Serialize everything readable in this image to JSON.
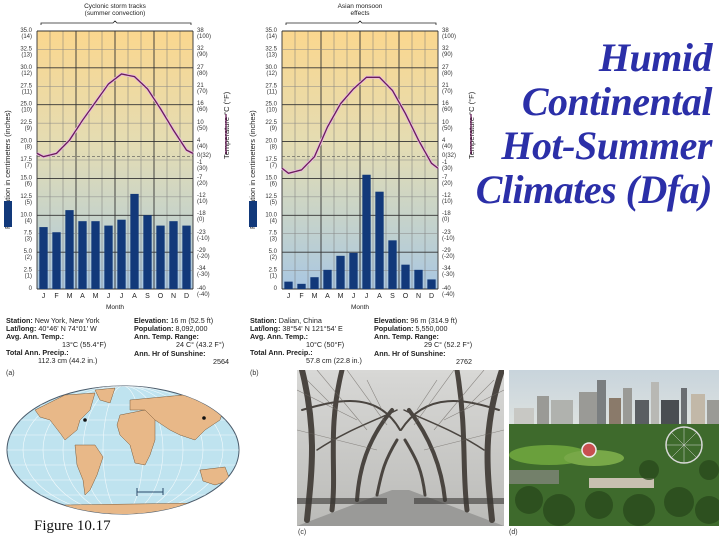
{
  "title": {
    "lines": [
      "Humid",
      "Continental",
      "Hot-Summer",
      "Climates (Dfa)"
    ],
    "color": "#2b2fa8"
  },
  "figure_caption": "Figure  10.17",
  "chart_data": [
    {
      "type": "bar",
      "panel_label": "(a)",
      "title": "Cyclonic storm tracks (summer convection)",
      "title_line1": "Cyclonic storm tracks",
      "title_line2": "(summer convection)",
      "xlabel": "Month",
      "ylabel": "Precipitation in centimeters (inches)",
      "y2label": "Temperature °C (°F)",
      "categories": [
        "J",
        "F",
        "M",
        "A",
        "M",
        "J",
        "J",
        "A",
        "S",
        "O",
        "N",
        "D"
      ],
      "series": [
        {
          "name": "Precipitation (cm)",
          "type": "bar",
          "color": "#12397a",
          "values": [
            8.4,
            7.7,
            10.7,
            9.2,
            9.2,
            8.6,
            9.4,
            12.9,
            10.0,
            8.6,
            9.2,
            8.6
          ]
        },
        {
          "name": "Temperature (°C)",
          "type": "line",
          "color": "#6a1f5a",
          "values": [
            0,
            1,
            5,
            11,
            16.5,
            22,
            25,
            24.2,
            20.5,
            14.5,
            8,
            2
          ]
        }
      ],
      "ylim": [
        0,
        35
      ],
      "y2lim": [
        -40,
        38
      ],
      "yticks": [
        {
          "cm": "35.0",
          "in": "(14)"
        },
        {
          "cm": "32.5",
          "in": "(13)"
        },
        {
          "cm": "30.0",
          "in": "(12)"
        },
        {
          "cm": "27.5",
          "in": "(11)"
        },
        {
          "cm": "25.0",
          "in": "(10)"
        },
        {
          "cm": "22.5",
          "in": "(9)"
        },
        {
          "cm": "20.0",
          "in": "(8)"
        },
        {
          "cm": "17.5",
          "in": "(7)"
        },
        {
          "cm": "15.0",
          "in": "(6)"
        },
        {
          "cm": "12.5",
          "in": "(5)"
        },
        {
          "cm": "10.0",
          "in": "(4)"
        },
        {
          "cm": "7.5",
          "in": "(3)"
        },
        {
          "cm": "5.0",
          "in": "(2)"
        },
        {
          "cm": "2.5",
          "in": "(1)"
        },
        {
          "cm": "0",
          "in": ""
        }
      ],
      "y2ticks": [
        {
          "c": "38",
          "f": "(100)"
        },
        {
          "c": "32",
          "f": "(90)"
        },
        {
          "c": "27",
          "f": "(80)"
        },
        {
          "c": "21",
          "f": "(70)"
        },
        {
          "c": "16",
          "f": "(60)"
        },
        {
          "c": "10",
          "f": "(50)"
        },
        {
          "c": "4",
          "f": "(40)"
        },
        {
          "c": "0(32)",
          "f": "-1"
        },
        {
          "c": "(30)",
          "f": ""
        },
        {
          "c": "-7",
          "f": "(20)"
        },
        {
          "c": "-12",
          "f": "(10)"
        },
        {
          "c": "-18",
          "f": "(0)"
        },
        {
          "c": "-23",
          "f": "(-10)"
        },
        {
          "c": "-29",
          "f": "(-20)"
        },
        {
          "c": "-34",
          "f": "(-30)"
        },
        {
          "c": "-40",
          "f": "(-40)"
        }
      ],
      "station": {
        "station_label": "Station:",
        "station": "New York, New York",
        "latlong_label": "Lat/long:",
        "latlong": "40°46' N 74°01' W",
        "avg_temp_label": "Avg. Ann. Temp.:",
        "avg_temp": "13°C (55.4°F)",
        "precip_label": "Total Ann. Precip.:",
        "precip": "112.3 cm (44.2 in.)",
        "elevation_label": "Elevation:",
        "elevation": "16 m (52.5 ft)",
        "population_label": "Population:",
        "population": "8,092,000",
        "range_label": "Ann. Temp. Range:",
        "range": "24 C° (43.2 F°)",
        "sunshine_label": "Ann. Hr of Sunshine:",
        "sunshine": "2564"
      }
    },
    {
      "type": "bar",
      "panel_label": "(b)",
      "title": "Asian monsoon effects",
      "title_line1": "Asian monsoon",
      "title_line2": "effects",
      "xlabel": "Month",
      "ylabel": "Precipitation in centimeters (inches)",
      "y2label": "Temperature °C (°F)",
      "categories": [
        "J",
        "F",
        "M",
        "A",
        "M",
        "J",
        "J",
        "A",
        "S",
        "O",
        "N",
        "D"
      ],
      "series": [
        {
          "name": "Precipitation (cm)",
          "type": "bar",
          "color": "#12397a",
          "values": [
            1.0,
            0.7,
            1.6,
            2.6,
            4.5,
            4.9,
            15.5,
            13.2,
            6.6,
            3.3,
            2.6,
            1.3
          ]
        },
        {
          "name": "Temperature (°C)",
          "type": "line",
          "color": "#6a1f5a",
          "values": [
            -5,
            -4,
            0,
            9,
            16,
            20.5,
            24,
            24,
            20,
            13,
            5,
            -2
          ]
        }
      ],
      "ylim": [
        0,
        35
      ],
      "y2lim": [
        -40,
        38
      ],
      "station": {
        "station_label": "Station:",
        "station": "Dalian, China",
        "latlong_label": "Lat/long:",
        "latlong": "38°54' N 121°54' E",
        "avg_temp_label": "Avg. Ann. Temp.:",
        "avg_temp": "10°C (50°F)",
        "precip_label": "Total Ann. Precip.:",
        "precip": "57.8 cm (22.8 in.)",
        "elevation_label": "Elevation:",
        "elevation": "96 m (314.9 ft)",
        "population_label": "Population:",
        "population": "5,550,000",
        "range_label": "Ann. Temp. Range:",
        "range": "29 C° (52.2 F°)",
        "sunshine_label": "Ann. Hr of Sunshine:",
        "sunshine": "2762"
      }
    }
  ],
  "photos": {
    "c_label": "(c)",
    "d_label": "(d)"
  }
}
